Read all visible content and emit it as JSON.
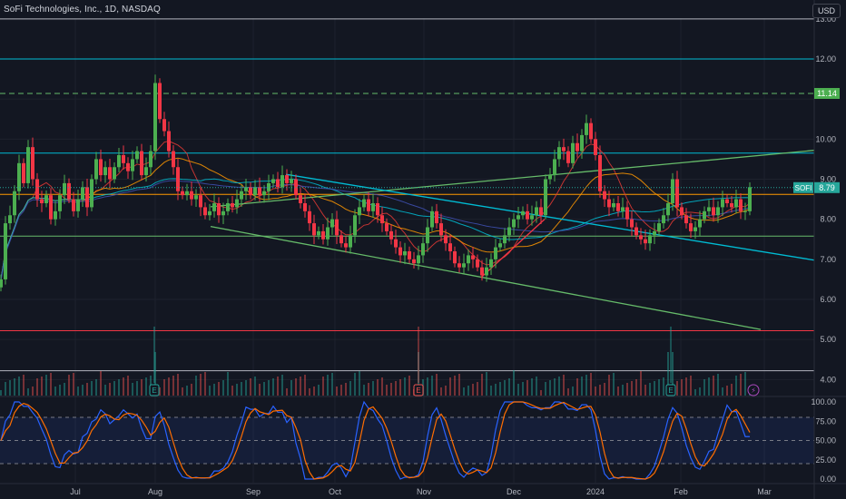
{
  "header": {
    "title": "SoFi Technologies, Inc., 1D, NASDAQ",
    "currency": "USD"
  },
  "colors": {
    "background": "#131722",
    "grid": "#1e222d",
    "up": "#26a69a",
    "down": "#ef5350",
    "upCandle": "#4caf50",
    "downCandle": "#f23645",
    "teal": "#00bcd4",
    "green": "#66bb6a",
    "orange": "#ff9800",
    "white": "#b2b5be",
    "red": "#f23645",
    "stochK": "#2962ff",
    "stochD": "#ff6d00",
    "price_label": "#26a69a"
  },
  "chart_data": {
    "type": "candlestick",
    "symbol": "SOFI",
    "ylim": [
      3.6,
      13.2
    ],
    "y_ticks": [
      "13.00",
      "12.00",
      "11.14",
      "10.00",
      "9.00",
      "8.79",
      "8.00",
      "7.00",
      "6.00",
      "5.00",
      "4.00"
    ],
    "x_ticks": [
      "Jul",
      "Aug",
      "Sep",
      "Oct",
      "Nov",
      "Dec",
      "2024",
      "Feb",
      "Mar"
    ],
    "last_price": {
      "symbol": "SOFI",
      "value": "8.79"
    },
    "dashed_level": {
      "value": "11.14"
    },
    "horizontal_levels": [
      {
        "value": 12.0,
        "color": "teal"
      },
      {
        "value": 11.14,
        "color": "green",
        "dashed": true
      },
      {
        "value": 9.65,
        "color": "teal"
      },
      {
        "value": 8.62,
        "color": "orange"
      },
      {
        "value": 7.58,
        "color": "green"
      },
      {
        "value": 5.22,
        "color": "red"
      },
      {
        "value": 13.0,
        "color": "white"
      },
      {
        "value": 4.22,
        "color": "white"
      }
    ],
    "trendlines": [
      {
        "from": [
          0,
          7.82
        ],
        "to": [
          897,
          9.72
        ],
        "start_x": 232,
        "color": "green"
      },
      {
        "from": [
          232,
          7.82
        ],
        "to": [
          838,
          5.25
        ],
        "color": "green"
      },
      {
        "from": [
          315,
          9.12
        ],
        "to": [
          897,
          6.98
        ],
        "color": "teal"
      },
      {
        "from": [
          530,
          6.55
        ],
        "to": [
          600,
          8.0
        ],
        "color": "red"
      }
    ],
    "candles": [
      [
        1,
        6.5
      ],
      [
        6,
        7.9
      ],
      [
        11,
        8.1
      ],
      [
        16,
        8.7
      ],
      [
        21,
        9.4
      ],
      [
        26,
        8.9
      ],
      [
        31,
        9.8
      ],
      [
        36,
        9.0
      ],
      [
        41,
        8.5
      ],
      [
        46,
        8.4
      ],
      [
        51,
        8.6
      ],
      [
        56,
        8.0
      ],
      [
        61,
        8.2
      ],
      [
        66,
        8.6
      ],
      [
        71,
        8.9
      ],
      [
        76,
        8.5
      ],
      [
        81,
        8.2
      ],
      [
        86,
        8.5
      ],
      [
        91,
        8.8
      ],
      [
        96,
        8.3
      ],
      [
        101,
        9.0
      ],
      [
        106,
        9.5
      ],
      [
        111,
        9.1
      ],
      [
        116,
        9.3
      ],
      [
        121,
        9.0
      ],
      [
        126,
        9.3
      ],
      [
        131,
        9.6
      ],
      [
        136,
        9.4
      ],
      [
        141,
        9.2
      ],
      [
        146,
        9.5
      ],
      [
        151,
        9.7
      ],
      [
        156,
        9.1
      ],
      [
        161,
        9.3
      ],
      [
        166,
        9.7
      ],
      [
        171,
        11.4
      ],
      [
        176,
        10.5
      ],
      [
        181,
        10.2
      ],
      [
        186,
        9.7
      ],
      [
        191,
        9.3
      ],
      [
        196,
        8.7
      ],
      [
        201,
        8.6
      ],
      [
        206,
        8.7
      ],
      [
        211,
        8.5
      ],
      [
        216,
        8.6
      ],
      [
        221,
        8.3
      ],
      [
        226,
        8.1
      ],
      [
        231,
        8.2
      ],
      [
        236,
        8.4
      ],
      [
        241,
        8.1
      ],
      [
        246,
        8.2
      ],
      [
        251,
        8.4
      ],
      [
        256,
        8.3
      ],
      [
        261,
        8.5
      ],
      [
        266,
        8.7
      ],
      [
        271,
        8.8
      ],
      [
        276,
        8.6
      ],
      [
        281,
        8.8
      ],
      [
        286,
        8.6
      ],
      [
        291,
        8.7
      ],
      [
        296,
        8.9
      ],
      [
        301,
        9.0
      ],
      [
        306,
        8.8
      ],
      [
        311,
        9.1
      ],
      [
        316,
        8.9
      ],
      [
        321,
        9.0
      ],
      [
        326,
        8.6
      ],
      [
        331,
        8.4
      ],
      [
        336,
        8.2
      ],
      [
        341,
        7.9
      ],
      [
        346,
        7.6
      ],
      [
        351,
        7.7
      ],
      [
        356,
        7.5
      ],
      [
        361,
        7.8
      ],
      [
        366,
        8.0
      ],
      [
        371,
        7.6
      ],
      [
        376,
        7.4
      ],
      [
        381,
        7.3
      ],
      [
        386,
        7.6
      ],
      [
        391,
        8.1
      ],
      [
        396,
        8.3
      ],
      [
        401,
        8.5
      ],
      [
        406,
        8.2
      ],
      [
        411,
        8.4
      ],
      [
        416,
        8.1
      ],
      [
        421,
        7.9
      ],
      [
        426,
        7.7
      ],
      [
        431,
        7.5
      ],
      [
        436,
        7.3
      ],
      [
        441,
        7.1
      ],
      [
        446,
        7.2
      ],
      [
        451,
        7.0
      ],
      [
        456,
        6.9
      ],
      [
        461,
        7.1
      ],
      [
        466,
        7.4
      ],
      [
        471,
        7.8
      ],
      [
        476,
        8.2
      ],
      [
        481,
        7.9
      ],
      [
        486,
        7.6
      ],
      [
        491,
        7.4
      ],
      [
        496,
        7.2
      ],
      [
        501,
        6.9
      ],
      [
        506,
        6.8
      ],
      [
        511,
        6.9
      ],
      [
        516,
        7.1
      ],
      [
        521,
        7.0
      ],
      [
        526,
        6.8
      ],
      [
        531,
        6.6
      ],
      [
        536,
        6.8
      ],
      [
        541,
        7.0
      ],
      [
        546,
        7.3
      ],
      [
        551,
        7.4
      ],
      [
        556,
        7.6
      ],
      [
        561,
        7.8
      ],
      [
        566,
        8.0
      ],
      [
        571,
        8.1
      ],
      [
        576,
        8.2
      ],
      [
        581,
        8.0
      ],
      [
        586,
        8.1
      ],
      [
        591,
        8.3
      ],
      [
        596,
        8.1
      ],
      [
        601,
        9.0
      ],
      [
        606,
        9.1
      ],
      [
        611,
        9.5
      ],
      [
        616,
        9.8
      ],
      [
        621,
        9.7
      ],
      [
        626,
        9.4
      ],
      [
        631,
        9.9
      ],
      [
        636,
        9.7
      ],
      [
        641,
        10.1
      ],
      [
        646,
        10.4
      ],
      [
        651,
        10.0
      ],
      [
        656,
        9.6
      ],
      [
        661,
        8.7
      ],
      [
        666,
        8.5
      ],
      [
        671,
        8.3
      ],
      [
        676,
        8.4
      ],
      [
        681,
        8.2
      ],
      [
        686,
        8.3
      ],
      [
        691,
        8.0
      ],
      [
        696,
        7.8
      ],
      [
        701,
        7.6
      ],
      [
        706,
        7.5
      ],
      [
        711,
        7.4
      ],
      [
        716,
        7.6
      ],
      [
        721,
        7.7
      ],
      [
        726,
        7.9
      ],
      [
        731,
        8.1
      ],
      [
        736,
        8.4
      ],
      [
        741,
        9.0
      ],
      [
        746,
        8.3
      ],
      [
        751,
        8.1
      ],
      [
        756,
        7.9
      ],
      [
        761,
        7.7
      ],
      [
        766,
        7.8
      ],
      [
        771,
        8.0
      ],
      [
        776,
        8.2
      ],
      [
        781,
        8.3
      ],
      [
        786,
        8.1
      ],
      [
        791,
        8.3
      ],
      [
        796,
        8.5
      ],
      [
        801,
        8.4
      ],
      [
        806,
        8.3
      ],
      [
        811,
        8.5
      ],
      [
        816,
        8.2
      ],
      [
        821,
        8.2
      ],
      [
        826,
        8.8
      ]
    ],
    "event_markers": [
      {
        "label": "E",
        "x": 170,
        "color": "#26a69a"
      },
      {
        "label": "E",
        "x": 461,
        "color": "#ef5350"
      },
      {
        "label": "E",
        "x": 739,
        "color": "#26a69a"
      },
      {
        "label": "⚡",
        "x": 830,
        "color": "#ab47bc"
      }
    ],
    "stochastic": {
      "y_ticks": [
        "100.00",
        "75.00",
        "50.00",
        "25.00",
        "0.00"
      ],
      "levels": [
        80,
        50,
        20
      ]
    }
  }
}
